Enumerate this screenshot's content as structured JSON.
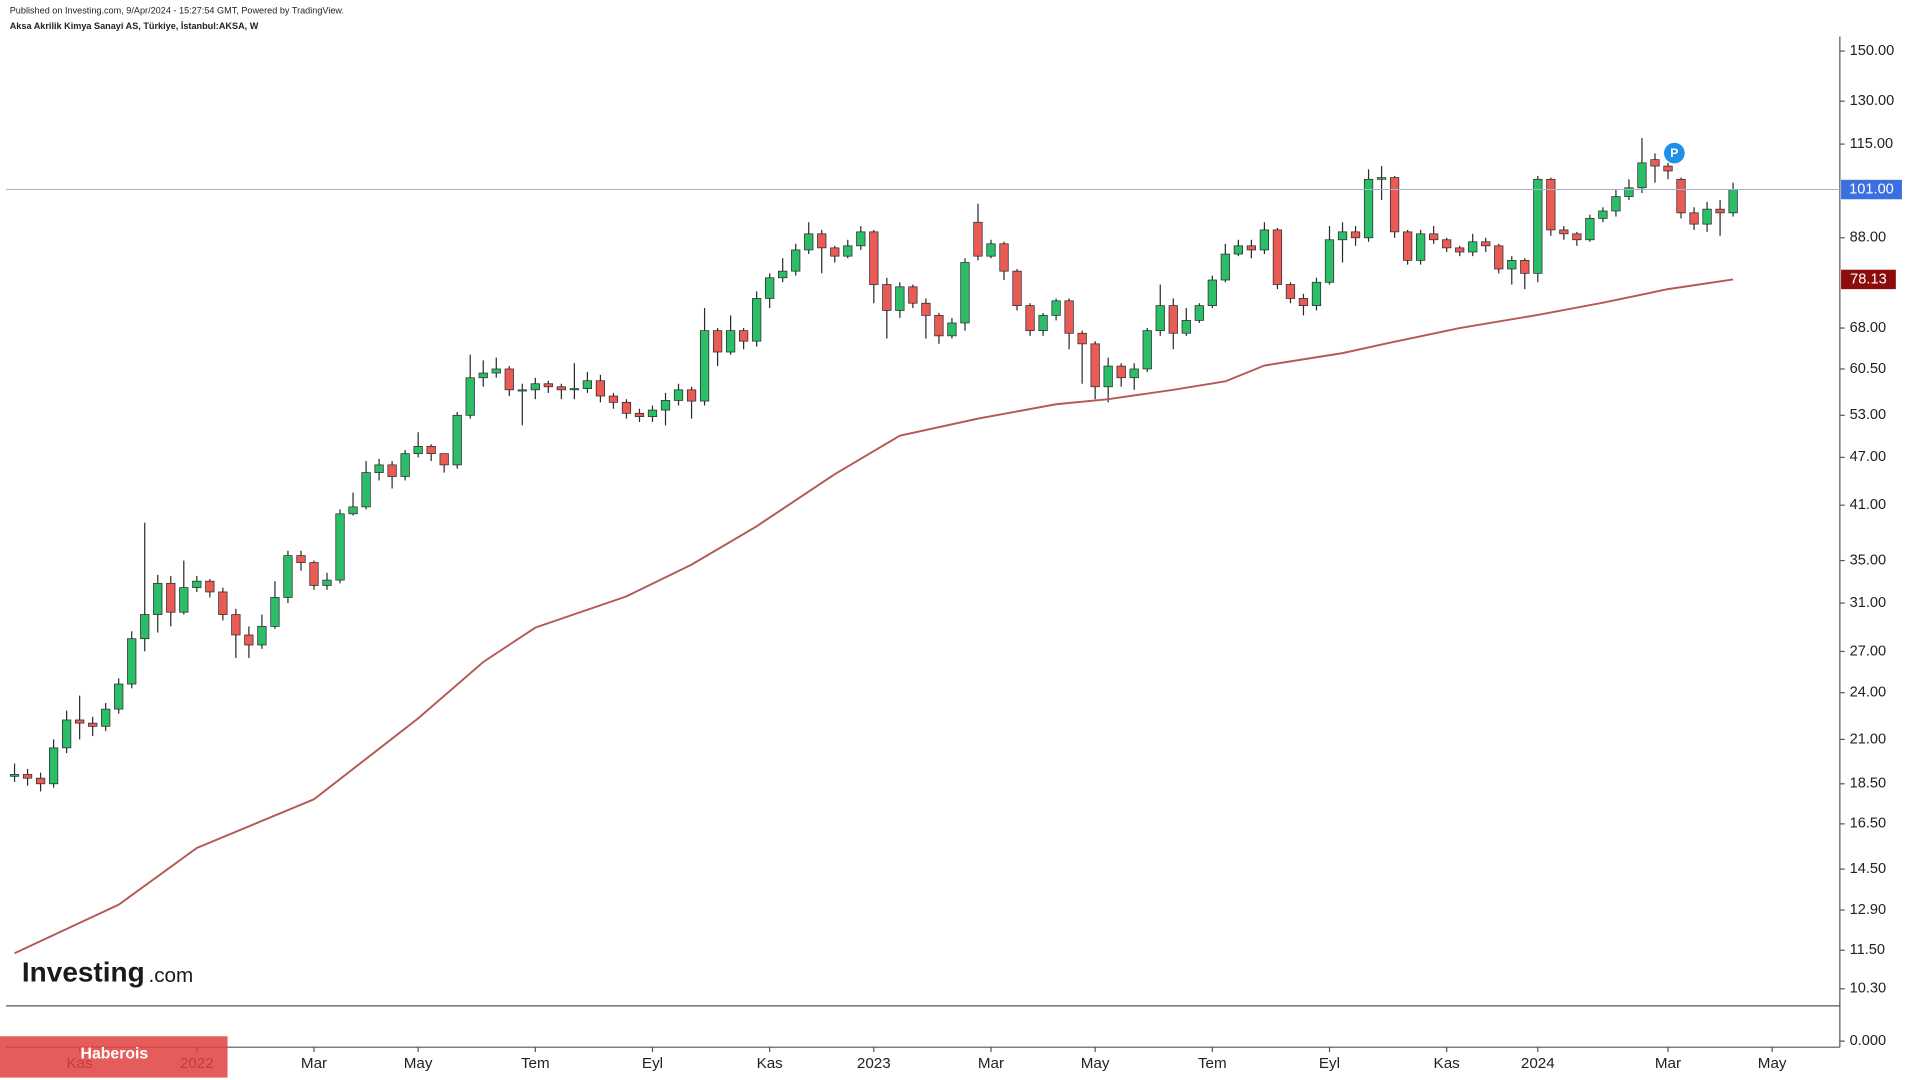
{
  "chart_data": {
    "type": "candlestick",
    "published": "Published on Investing.com, 9/Apr/2024 - 15:27:54 GMT, Powered by TradingView.",
    "title": "Aksa Akrilik Kimya Sanayi AS, Türkiye, İstanbul:AKSA, W",
    "logo_name": "Investing",
    "logo_suffix": ".com",
    "watermark": "Haberois",
    "marker_label": "P",
    "log_scale": true,
    "up_color": "#2cbd69",
    "down_color": "#eb5b56",
    "outline_color": "#2a2a2a",
    "open": [
      18.9,
      19.0,
      18.8,
      18.5,
      20.5,
      22.2,
      22.0,
      21.8,
      22.9,
      24.6,
      28.0,
      30.0,
      32.8,
      30.2,
      32.4,
      33.0,
      32.0,
      30.0,
      28.3,
      27.5,
      29.0,
      31.5,
      35.5,
      34.8,
      32.6,
      33.1,
      40.0,
      40.8,
      45.0,
      46.0,
      44.5,
      47.5,
      48.5,
      47.5,
      46.0,
      53.0,
      59.0,
      59.8,
      60.5,
      57.0,
      57.0,
      58.0,
      57.5,
      57.0,
      57.2,
      58.5,
      56.0,
      55.0,
      53.3,
      52.8,
      53.8,
      55.3,
      57.0,
      55.2,
      67.5,
      63.5,
      67.5,
      65.5,
      74.0,
      78.5,
      80.0,
      85.0,
      89.0,
      85.5,
      83.5,
      86.0,
      89.5,
      77.0,
      71.5,
      76.5,
      73.0,
      70.5,
      66.5,
      69.0,
      92.0,
      83.5,
      86.5,
      80.0,
      72.5,
      67.5,
      70.5,
      73.5,
      67.0,
      65.0,
      57.5,
      61.0,
      59.0,
      60.5,
      67.5,
      72.5,
      67.0,
      69.5,
      72.5,
      78.0,
      84.0,
      86.0,
      85.0,
      90.0,
      77.0,
      74.0,
      72.5,
      77.5,
      87.5,
      89.5,
      88.0,
      104.0,
      104.5,
      89.5,
      82.5,
      89.0,
      87.5,
      85.5,
      84.5,
      87.0,
      86.0,
      80.5,
      82.5,
      79.5,
      104.0,
      90.0,
      89.0,
      87.5,
      93.0,
      95.0,
      99.0,
      101.5,
      110.0,
      108.0,
      104.0,
      94.5,
      91.5,
      95.5,
      94.5
    ],
    "high": [
      19.6,
      19.3,
      19.1,
      21.0,
      22.8,
      23.8,
      22.4,
      23.3,
      25.0,
      28.6,
      39.0,
      33.6,
      33.5,
      35.0,
      33.5,
      33.2,
      32.4,
      30.5,
      29.0,
      30.0,
      33.0,
      36.0,
      36.0,
      35.0,
      33.8,
      40.5,
      42.5,
      46.5,
      46.8,
      46.5,
      48.0,
      50.5,
      48.8,
      47.5,
      53.5,
      63.0,
      62.0,
      62.5,
      61.0,
      58.0,
      59.0,
      58.5,
      58.0,
      61.5,
      60.0,
      59.5,
      56.5,
      55.5,
      54.0,
      54.5,
      56.5,
      58.0,
      57.5,
      72.0,
      68.0,
      70.5,
      68.0,
      75.5,
      79.5,
      83.0,
      86.5,
      92.0,
      90.0,
      86.0,
      87.5,
      91.0,
      90.0,
      78.5,
      77.5,
      77.0,
      74.0,
      71.0,
      70.0,
      83.0,
      97.0,
      87.5,
      87.0,
      80.5,
      73.0,
      71.0,
      74.0,
      74.0,
      67.5,
      65.5,
      62.5,
      61.5,
      61.5,
      68.0,
      77.0,
      74.0,
      72.0,
      73.0,
      79.0,
      86.5,
      87.5,
      87.5,
      92.0,
      90.5,
      77.5,
      75.0,
      78.5,
      91.0,
      92.0,
      91.0,
      107.0,
      108.0,
      105.0,
      90.0,
      90.0,
      91.0,
      88.0,
      86.0,
      89.0,
      88.0,
      86.5,
      83.5,
      83.0,
      105.0,
      104.5,
      91.0,
      89.5,
      94.0,
      96.0,
      101.0,
      104.0,
      117.0,
      112.0,
      109.0,
      104.5,
      96.0,
      97.5,
      98.0,
      103.0
    ],
    "low": [
      18.6,
      18.4,
      18.1,
      18.3,
      20.2,
      21.0,
      21.2,
      21.5,
      22.6,
      24.3,
      27.0,
      28.5,
      29.0,
      30.0,
      32.0,
      31.5,
      29.5,
      26.5,
      26.5,
      27.2,
      28.8,
      31.0,
      34.0,
      32.2,
      32.2,
      32.8,
      39.8,
      40.5,
      44.0,
      43.0,
      44.0,
      47.0,
      46.5,
      45.0,
      45.5,
      52.5,
      57.5,
      59.0,
      56.0,
      51.5,
      55.5,
      56.5,
      55.5,
      55.5,
      56.5,
      55.0,
      54.0,
      52.5,
      52.0,
      52.0,
      51.5,
      54.5,
      52.5,
      54.5,
      61.0,
      63.0,
      64.0,
      64.5,
      72.0,
      77.5,
      79.0,
      84.0,
      79.5,
      82.0,
      83.0,
      85.0,
      73.0,
      66.0,
      70.0,
      72.0,
      66.0,
      65.0,
      66.0,
      67.5,
      82.5,
      83.0,
      78.0,
      71.5,
      66.5,
      66.5,
      69.5,
      64.0,
      58.0,
      55.5,
      55.0,
      57.5,
      57.0,
      60.0,
      66.5,
      64.0,
      66.5,
      69.0,
      72.0,
      77.5,
      83.5,
      83.0,
      84.0,
      76.0,
      73.0,
      70.5,
      71.5,
      77.0,
      82.0,
      86.0,
      87.0,
      98.0,
      88.0,
      81.5,
      81.5,
      86.5,
      84.5,
      83.5,
      83.5,
      84.5,
      79.5,
      77.0,
      76.0,
      77.5,
      88.5,
      87.5,
      86.0,
      87.0,
      92.0,
      93.5,
      98.0,
      100.0,
      103.0,
      104.0,
      93.0,
      90.0,
      89.5,
      88.5,
      93.5
    ],
    "close": [
      19.0,
      18.8,
      18.5,
      20.5,
      22.2,
      22.0,
      21.8,
      22.9,
      24.6,
      28.0,
      30.0,
      32.8,
      30.2,
      32.4,
      33.0,
      32.0,
      30.0,
      28.3,
      27.5,
      29.0,
      31.5,
      35.5,
      34.8,
      32.6,
      33.1,
      40.0,
      40.8,
      45.0,
      46.0,
      44.5,
      47.5,
      48.5,
      47.5,
      46.0,
      53.0,
      59.0,
      59.8,
      60.5,
      57.0,
      57.0,
      58.0,
      57.5,
      57.0,
      57.2,
      58.5,
      56.0,
      55.0,
      53.3,
      52.8,
      53.8,
      55.3,
      57.0,
      55.2,
      67.5,
      63.5,
      67.5,
      65.5,
      74.0,
      78.5,
      80.0,
      85.0,
      89.0,
      85.5,
      83.5,
      86.0,
      89.5,
      77.0,
      71.5,
      76.5,
      73.0,
      70.5,
      66.5,
      69.0,
      82.0,
      83.5,
      86.5,
      80.0,
      72.5,
      67.5,
      70.5,
      73.5,
      67.0,
      65.0,
      57.5,
      61.0,
      59.0,
      60.5,
      67.5,
      72.5,
      67.0,
      69.5,
      72.5,
      78.0,
      84.0,
      86.0,
      85.0,
      90.0,
      77.0,
      74.0,
      72.5,
      77.5,
      87.5,
      89.5,
      88.0,
      104.0,
      104.5,
      89.5,
      82.5,
      89.0,
      87.5,
      85.5,
      84.5,
      87.0,
      86.0,
      80.5,
      82.5,
      79.5,
      104.0,
      90.0,
      89.0,
      87.5,
      93.0,
      95.0,
      99.0,
      101.5,
      109.0,
      108.0,
      106.5,
      94.5,
      91.5,
      95.5,
      94.5,
      101.0
    ],
    "last_price_label": "101.00",
    "last_price_color": "#3b6fdf",
    "ma": {
      "color": "#b35a55",
      "x": [
        0,
        8,
        14,
        23,
        31,
        36,
        40,
        47,
        52,
        57,
        63,
        68,
        74,
        80,
        84,
        89,
        93,
        96,
        102,
        106,
        111,
        117,
        122,
        127,
        132
      ],
      "values": [
        11.4,
        13.1,
        15.4,
        17.7,
        22.3,
        26.2,
        28.9,
        31.6,
        34.6,
        38.6,
        44.8,
        50.0,
        52.5,
        54.7,
        55.5,
        57.0,
        58.4,
        61.1,
        63.3,
        65.4,
        68.0,
        70.6,
        73.1,
        76.0,
        78.13
      ],
      "tag_color": "#8c0b0b"
    },
    "xlim": [
      -0.65,
      140.2
    ],
    "xticks": [
      {
        "value": 5,
        "label": "Kas"
      },
      {
        "value": 14,
        "label": "2022"
      },
      {
        "value": 23,
        "label": "Mar"
      },
      {
        "value": 31,
        "label": "May"
      },
      {
        "value": 40,
        "label": "Tem"
      },
      {
        "value": 49,
        "label": "Eyl"
      },
      {
        "value": 58,
        "label": "Kas"
      },
      {
        "value": 66,
        "label": "2023"
      },
      {
        "value": 75,
        "label": "Mar"
      },
      {
        "value": 83,
        "label": "May"
      },
      {
        "value": 92,
        "label": "Tem"
      },
      {
        "value": 101,
        "label": "Eyl"
      },
      {
        "value": 110,
        "label": "Kas"
      },
      {
        "value": 117,
        "label": "2024"
      },
      {
        "value": 127,
        "label": "Mar"
      },
      {
        "value": 135,
        "label": "May"
      }
    ],
    "ylim": [
      9.81,
      156.4
    ],
    "yticks": [
      {
        "value": 150,
        "label": "150.00"
      },
      {
        "value": 130,
        "label": "130.00"
      },
      {
        "value": 115,
        "label": "115.00"
      },
      {
        "value": 88,
        "label": "88.00"
      },
      {
        "value": 68,
        "label": "68.00"
      },
      {
        "value": 60.5,
        "label": "60.50"
      },
      {
        "value": 53,
        "label": "53.00"
      },
      {
        "value": 47,
        "label": "47.00"
      },
      {
        "value": 41,
        "label": "41.00"
      },
      {
        "value": 35,
        "label": "35.00"
      },
      {
        "value": 31,
        "label": "31.00"
      },
      {
        "value": 27,
        "label": "27.00"
      },
      {
        "value": 24,
        "label": "24.00"
      },
      {
        "value": 21,
        "label": "21.00"
      },
      {
        "value": 18.5,
        "label": "18.50"
      },
      {
        "value": 16.5,
        "label": "16.50"
      },
      {
        "value": 14.5,
        "label": "14.50"
      },
      {
        "value": 12.9,
        "label": "12.90"
      },
      {
        "value": 11.5,
        "label": "11.50"
      },
      {
        "value": 10.3,
        "label": "10.30"
      }
    ],
    "lower_pane_yticks": [
      {
        "value": 0,
        "label": "0.000"
      }
    ]
  }
}
